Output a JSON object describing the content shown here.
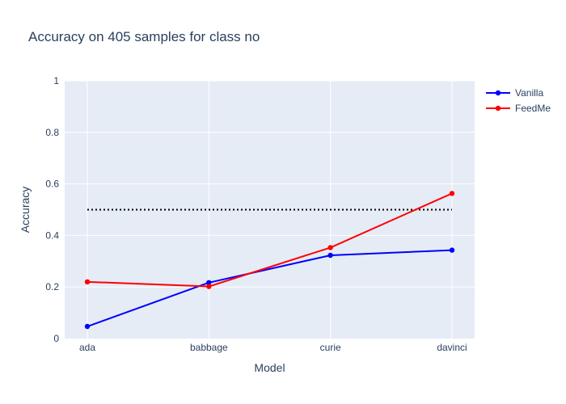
{
  "chart_data": {
    "type": "line",
    "title": "Accuracy on 405 samples for class  no",
    "xlabel": "Model",
    "ylabel": "Accuracy",
    "categories": [
      "ada",
      "babbage",
      "curie",
      "davinci"
    ],
    "ylim": [
      0,
      1
    ],
    "yticks": [
      0,
      0.2,
      0.4,
      0.6,
      0.8,
      1
    ],
    "ytick_labels": [
      "0",
      "0.2",
      "0.4",
      "0.6",
      "0.8",
      "1"
    ],
    "grid": true,
    "legend_position": "top-right",
    "background_color": "#e5ecf6",
    "series": [
      {
        "name": "Vanilla",
        "color": "#0000ff",
        "values": [
          0.047,
          0.217,
          0.323,
          0.343
        ]
      },
      {
        "name": "FeedMe",
        "color": "#ff0000",
        "values": [
          0.22,
          0.202,
          0.353,
          0.563
        ]
      }
    ],
    "reference_line": {
      "value": 0.5,
      "color": "#000000",
      "style": "dotted"
    }
  }
}
